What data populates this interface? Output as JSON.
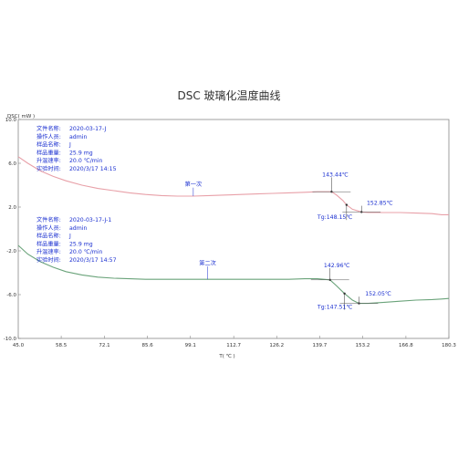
{
  "chart_data": {
    "type": "line",
    "title": "DSC 玻璃化温度曲线",
    "ylabel": "DSC( mW )",
    "xlabel": "T( ℃ )",
    "xlim": [
      45.0,
      180.3
    ],
    "ylim": [
      -10.0,
      10.0
    ],
    "xticks": [
      "45.0",
      "58.5",
      "72.1",
      "85.6",
      "99.1",
      "112.7",
      "126.2",
      "139.7",
      "153.2",
      "166.8",
      "180.3"
    ],
    "yticks": [
      "10.0",
      "6.0",
      "2.0",
      "-2.0",
      "-6.0",
      "-10.0"
    ],
    "grid": false,
    "info_boxes": [
      {
        "lines": [
          {
            "k": "文件名称:",
            "v": "2020-03-17-J"
          },
          {
            "k": "操作人员:",
            "v": "admin"
          },
          {
            "k": "样品名称:",
            "v": "J"
          },
          {
            "k": "样品重量:",
            "v": "25.9 mg"
          },
          {
            "k": "升温速率:",
            "v": "20.0 ℃/min"
          },
          {
            "k": "实验时间:",
            "v": "2020/3/17 14:15"
          }
        ]
      },
      {
        "lines": [
          {
            "k": "文件名称:",
            "v": "2020-03-17-J-1"
          },
          {
            "k": "操作人员:",
            "v": "admin"
          },
          {
            "k": "样品名称:",
            "v": "J"
          },
          {
            "k": "样品重量:",
            "v": "25.9 mg"
          },
          {
            "k": "升温速率:",
            "v": "20.0 ℃/min"
          },
          {
            "k": "实验时间:",
            "v": "2020/3/17 14:57"
          }
        ]
      }
    ],
    "series": [
      {
        "name": "第一次",
        "color": "#e8a0a8",
        "x": [
          45.0,
          48,
          52,
          56,
          60,
          65,
          70,
          75,
          80,
          85,
          90,
          95,
          100,
          105,
          110,
          115,
          120,
          125,
          130,
          135,
          139,
          141,
          143.44,
          145,
          147,
          148.15,
          150,
          152.85,
          155,
          160,
          165,
          170,
          175,
          178,
          180.3
        ],
        "y": [
          6.6,
          6.0,
          5.3,
          4.8,
          4.4,
          4.0,
          3.7,
          3.5,
          3.3,
          3.15,
          3.05,
          3.0,
          3.0,
          3.05,
          3.1,
          3.15,
          3.2,
          3.25,
          3.3,
          3.35,
          3.4,
          3.4,
          3.4,
          3.1,
          2.6,
          2.2,
          1.8,
          1.55,
          1.5,
          1.5,
          1.5,
          1.45,
          1.4,
          1.3,
          1.3
        ],
        "label_x": 100.0,
        "label_y": 3.9,
        "annotations": [
          {
            "text": "143.44℃",
            "x": 143.44,
            "y": 3.4,
            "tx": 140.5,
            "ty": 4.8
          },
          {
            "text": "152.85℃",
            "x": 152.85,
            "y": 1.55,
            "tx": 154.5,
            "ty": 2.2
          },
          {
            "text": "Tg:148.15℃",
            "x": 148.15,
            "y": 2.2,
            "tx": 139.0,
            "ty": 0.9
          }
        ]
      },
      {
        "name": "第二次",
        "color": "#6aa37a",
        "x": [
          45.0,
          48,
          52,
          56,
          60,
          65,
          70,
          75,
          80,
          85,
          90,
          95,
          100,
          105,
          110,
          115,
          120,
          125,
          130,
          135,
          139,
          141,
          142.96,
          145,
          147.51,
          150,
          152.05,
          155,
          160,
          165,
          170,
          175,
          178,
          180.3
        ],
        "y": [
          -1.5,
          -2.3,
          -3.0,
          -3.5,
          -3.9,
          -4.2,
          -4.4,
          -4.5,
          -4.55,
          -4.6,
          -4.6,
          -4.6,
          -4.6,
          -4.6,
          -4.6,
          -4.6,
          -4.6,
          -4.6,
          -4.6,
          -4.55,
          -4.55,
          -4.6,
          -4.65,
          -5.2,
          -5.9,
          -6.5,
          -6.8,
          -6.8,
          -6.7,
          -6.6,
          -6.5,
          -6.45,
          -6.4,
          -6.35
        ],
        "label_x": 104.5,
        "label_y": -3.3,
        "annotations": [
          {
            "text": "142.96℃",
            "x": 142.96,
            "y": -4.65,
            "tx": 141.0,
            "ty": -3.5
          },
          {
            "text": "152.05℃",
            "x": 152.05,
            "y": -6.8,
            "tx": 154.0,
            "ty": -6.1
          },
          {
            "text": "Tg:147.51℃",
            "x": 147.51,
            "y": -5.9,
            "tx": 139.0,
            "ty": -7.3
          }
        ]
      }
    ]
  }
}
